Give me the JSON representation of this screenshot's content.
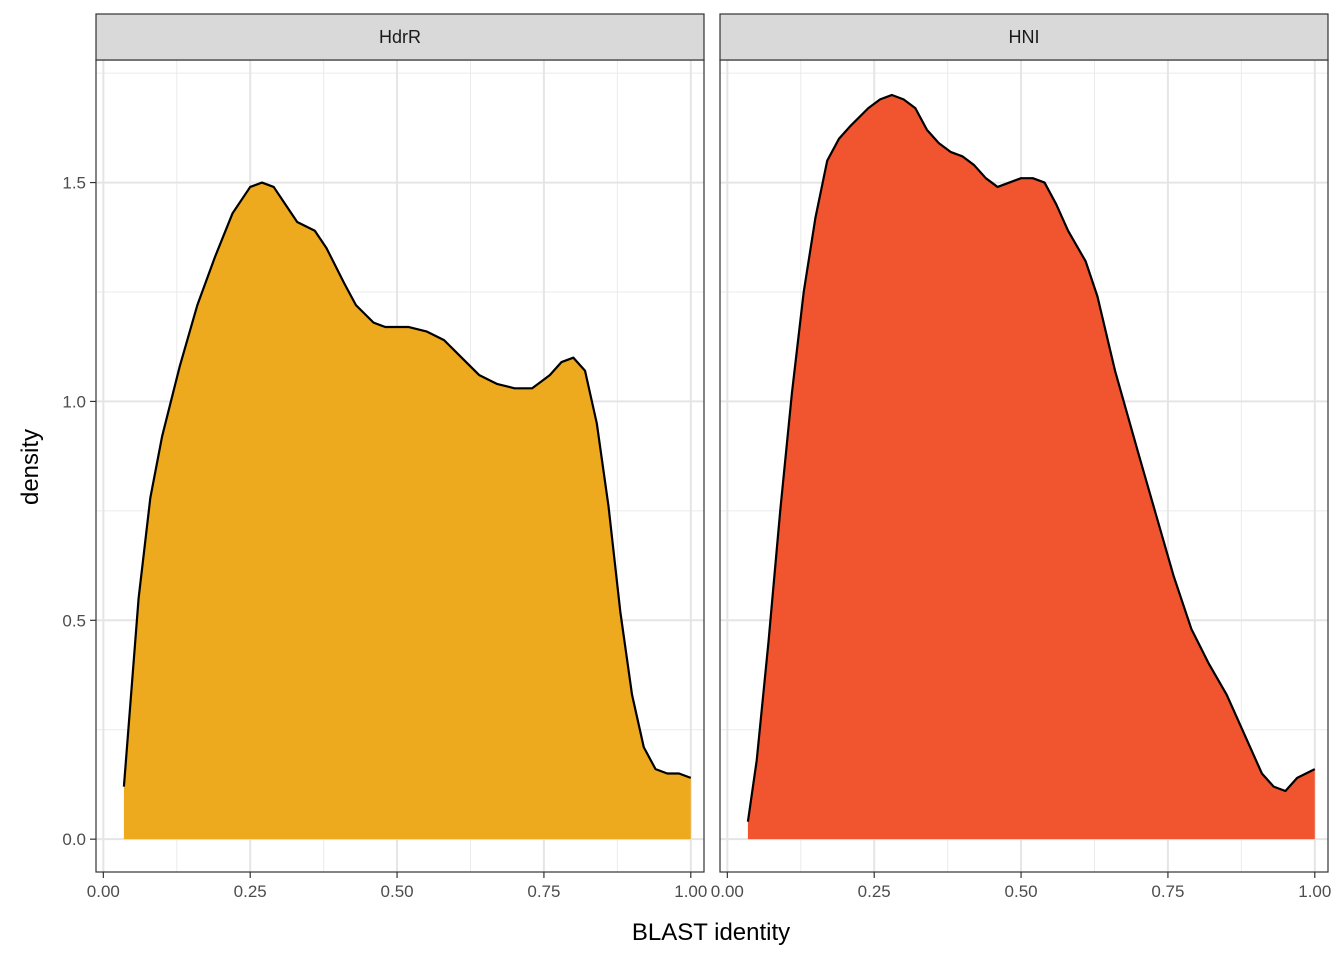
{
  "chart_data": {
    "type": "area",
    "subtype": "faceted-density",
    "xlabel": "BLAST identity",
    "ylabel": "density",
    "xlim": [
      -0.0125,
      1.0225
    ],
    "ylim": [
      -0.075,
      1.78
    ],
    "x_ticks": [
      0.0,
      0.25,
      0.5,
      0.75,
      1.0
    ],
    "x_tick_labels": [
      "0.00",
      "0.25",
      "0.50",
      "0.75",
      "1.00"
    ],
    "x_minor": [
      0.125,
      0.375,
      0.625,
      0.875
    ],
    "y_ticks": [
      0.0,
      0.5,
      1.0,
      1.5
    ],
    "y_tick_labels": [
      "0.0",
      "0.5",
      "1.0",
      "1.5"
    ],
    "y_minor": [
      0.25,
      0.75,
      1.25,
      1.75
    ],
    "grid": true,
    "outline_color": "#000000",
    "panels": [
      {
        "label": "HdrR",
        "fill": "#EEAA1E",
        "points": [
          [
            0.035,
            0.12
          ],
          [
            0.06,
            0.55
          ],
          [
            0.08,
            0.78
          ],
          [
            0.1,
            0.92
          ],
          [
            0.13,
            1.08
          ],
          [
            0.16,
            1.22
          ],
          [
            0.19,
            1.33
          ],
          [
            0.22,
            1.43
          ],
          [
            0.25,
            1.49
          ],
          [
            0.27,
            1.5
          ],
          [
            0.29,
            1.49
          ],
          [
            0.31,
            1.45
          ],
          [
            0.33,
            1.41
          ],
          [
            0.36,
            1.39
          ],
          [
            0.38,
            1.35
          ],
          [
            0.41,
            1.27
          ],
          [
            0.43,
            1.22
          ],
          [
            0.46,
            1.18
          ],
          [
            0.48,
            1.17
          ],
          [
            0.52,
            1.17
          ],
          [
            0.55,
            1.16
          ],
          [
            0.58,
            1.14
          ],
          [
            0.61,
            1.1
          ],
          [
            0.64,
            1.06
          ],
          [
            0.67,
            1.04
          ],
          [
            0.7,
            1.03
          ],
          [
            0.73,
            1.03
          ],
          [
            0.76,
            1.06
          ],
          [
            0.78,
            1.09
          ],
          [
            0.8,
            1.1
          ],
          [
            0.82,
            1.07
          ],
          [
            0.84,
            0.95
          ],
          [
            0.86,
            0.76
          ],
          [
            0.88,
            0.52
          ],
          [
            0.9,
            0.33
          ],
          [
            0.92,
            0.21
          ],
          [
            0.94,
            0.16
          ],
          [
            0.96,
            0.15
          ],
          [
            0.98,
            0.15
          ],
          [
            1.0,
            0.14
          ]
        ]
      },
      {
        "label": "HNI",
        "fill": "#F15530",
        "points": [
          [
            0.035,
            0.04
          ],
          [
            0.05,
            0.18
          ],
          [
            0.07,
            0.45
          ],
          [
            0.09,
            0.75
          ],
          [
            0.11,
            1.02
          ],
          [
            0.13,
            1.25
          ],
          [
            0.15,
            1.42
          ],
          [
            0.17,
            1.55
          ],
          [
            0.19,
            1.6
          ],
          [
            0.21,
            1.63
          ],
          [
            0.24,
            1.67
          ],
          [
            0.26,
            1.69
          ],
          [
            0.28,
            1.7
          ],
          [
            0.3,
            1.69
          ],
          [
            0.32,
            1.67
          ],
          [
            0.34,
            1.62
          ],
          [
            0.36,
            1.59
          ],
          [
            0.38,
            1.57
          ],
          [
            0.4,
            1.56
          ],
          [
            0.42,
            1.54
          ],
          [
            0.44,
            1.51
          ],
          [
            0.46,
            1.49
          ],
          [
            0.48,
            1.5
          ],
          [
            0.5,
            1.51
          ],
          [
            0.52,
            1.51
          ],
          [
            0.54,
            1.5
          ],
          [
            0.56,
            1.45
          ],
          [
            0.58,
            1.39
          ],
          [
            0.61,
            1.32
          ],
          [
            0.63,
            1.24
          ],
          [
            0.66,
            1.07
          ],
          [
            0.7,
            0.88
          ],
          [
            0.73,
            0.74
          ],
          [
            0.76,
            0.6
          ],
          [
            0.79,
            0.48
          ],
          [
            0.82,
            0.4
          ],
          [
            0.85,
            0.33
          ],
          [
            0.88,
            0.24
          ],
          [
            0.91,
            0.15
          ],
          [
            0.93,
            0.12
          ],
          [
            0.95,
            0.11
          ],
          [
            0.97,
            0.14
          ],
          [
            1.0,
            0.16
          ]
        ]
      }
    ]
  }
}
